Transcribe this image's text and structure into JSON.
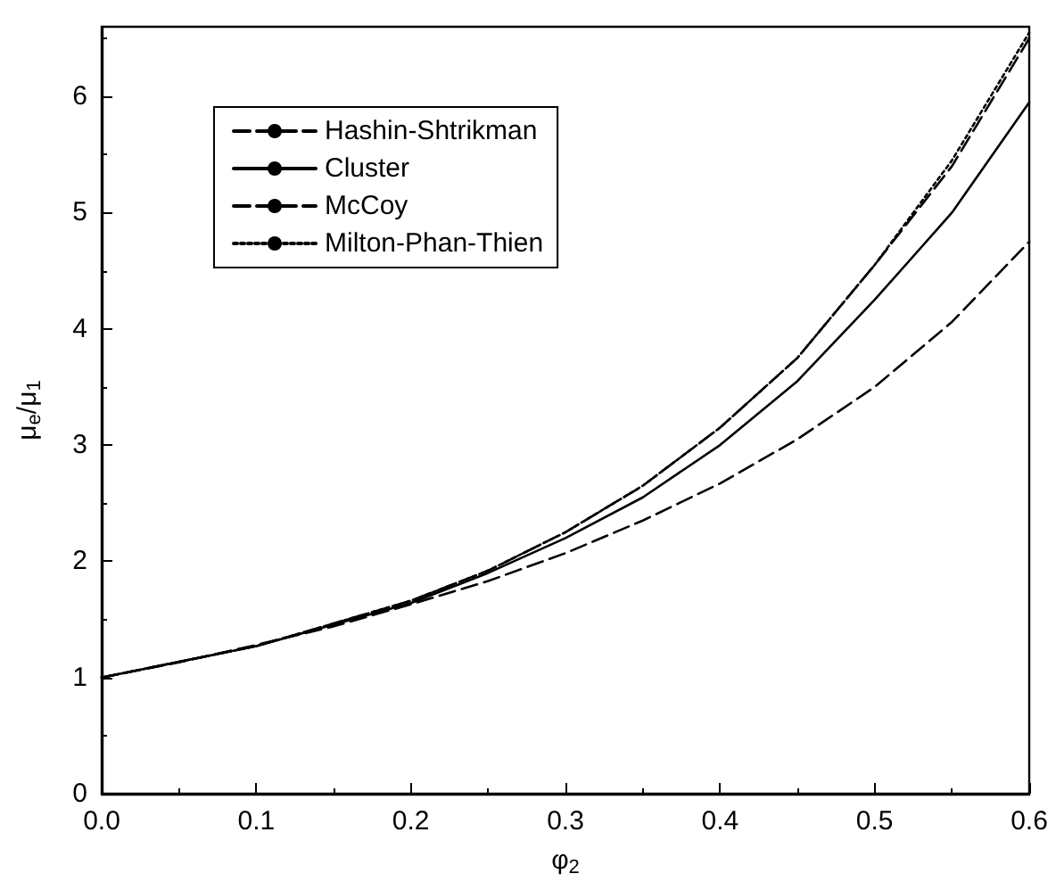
{
  "chart_data": {
    "type": "line",
    "xlabel": "φ$_{2}$",
    "ylabel": "μ$_{e}$/μ$_{1}$",
    "xlim": [
      0,
      0.6
    ],
    "ylim": [
      0,
      6.6
    ],
    "xticks": [
      {
        "value": 0,
        "label": "0.0"
      },
      {
        "value": 0.1,
        "label": "0.1"
      },
      {
        "value": 0.2,
        "label": "0.2"
      },
      {
        "value": 0.3,
        "label": "0.3"
      },
      {
        "value": 0.4,
        "label": "0.4"
      },
      {
        "value": 0.5,
        "label": "0.5"
      },
      {
        "value": 0.6,
        "label": "0.6"
      }
    ],
    "yticks": [
      0,
      1,
      2,
      3,
      4,
      5,
      6
    ],
    "grid": false,
    "legend": "top left",
    "marker": "none",
    "series": [
      {
        "name": "Hashin-Shtrikman",
        "color": "#000000",
        "line_style": "dashed",
        "x": [
          0,
          0.05,
          0.1,
          0.15,
          0.2,
          0.25,
          0.3,
          0.35,
          0.4,
          0.45,
          0.5,
          0.55,
          0.6
        ],
        "values": [
          1,
          1.13,
          1.28,
          1.44,
          1.63,
          1.83,
          2.07,
          2.35,
          2.67,
          3.05,
          3.5,
          4.06,
          4.75
        ]
      },
      {
        "name": "Cluster",
        "color": "#000000",
        "line_style": "solid",
        "x": [
          0,
          0.1,
          0.2,
          0.25,
          0.3,
          0.35,
          0.4,
          0.45,
          0.5,
          0.55,
          0.6
        ],
        "values": [
          1,
          1.27,
          1.64,
          1.9,
          2.2,
          2.55,
          3.0,
          3.55,
          4.25,
          5.0,
          5.95
        ]
      },
      {
        "name": "McCoy",
        "color": "#000000",
        "line_style": "dashed",
        "x": [
          0,
          0.1,
          0.2,
          0.25,
          0.3,
          0.35,
          0.4,
          0.45,
          0.5,
          0.55,
          0.6
        ],
        "values": [
          1,
          1.27,
          1.66,
          1.92,
          2.25,
          2.65,
          3.15,
          3.75,
          4.55,
          5.4,
          6.5
        ]
      },
      {
        "name": "Milton-Phan-Thien",
        "color": "#000000",
        "line_style": "dotted",
        "x": [
          0,
          0.1,
          0.2,
          0.25,
          0.3,
          0.35,
          0.4,
          0.45,
          0.5,
          0.55,
          0.6
        ],
        "values": [
          1,
          1.27,
          1.66,
          1.92,
          2.25,
          2.65,
          3.15,
          3.75,
          4.55,
          5.45,
          6.55
        ]
      }
    ]
  }
}
